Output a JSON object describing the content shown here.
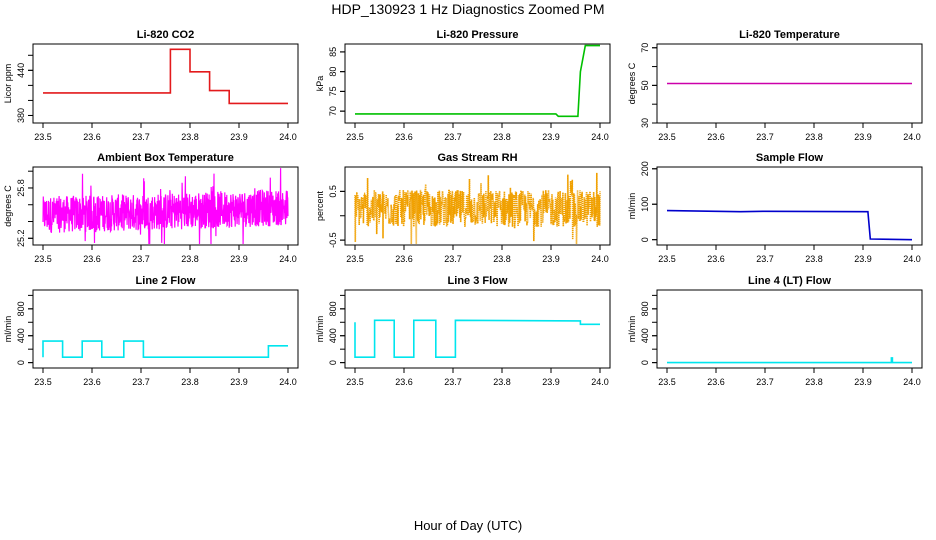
{
  "title": "HDP_130923  1 Hz Diagnostics Zoomed PM",
  "xlabel": "Hour of Day (UTC)",
  "chart_data": [
    {
      "type": "line",
      "title": "Li-820 CO2",
      "ylabel": "Licor ppm",
      "color": "#e31a1c",
      "ylim": [
        370,
        475
      ],
      "yticks": [
        380,
        440
      ],
      "yticks_minor": [
        380,
        400,
        420,
        440,
        460
      ],
      "xlim": [
        23.5,
        24.0
      ],
      "xticks": [
        "23.5",
        "23.6",
        "23.7",
        "23.8",
        "23.9",
        "24.0"
      ],
      "series": [
        {
          "x": [
            23.5,
            23.76,
            23.76,
            23.8,
            23.8,
            23.84,
            23.84,
            23.88,
            23.88,
            24.0
          ],
          "y": [
            410,
            410,
            468,
            468,
            438,
            438,
            413,
            413,
            396,
            396
          ]
        }
      ]
    },
    {
      "type": "line",
      "title": "Li-820 Pressure",
      "ylabel": "kPa",
      "color": "#00c000",
      "ylim": [
        67,
        87
      ],
      "yticks": [
        70,
        75,
        80,
        85
      ],
      "xlim": [
        23.5,
        24.0
      ],
      "xticks": [
        "23.5",
        "23.6",
        "23.7",
        "23.8",
        "23.9",
        "24.0"
      ],
      "series": [
        {
          "x": [
            23.5,
            23.91,
            23.915,
            23.955,
            23.96,
            23.97,
            24.0
          ],
          "y": [
            69.3,
            69.3,
            68.7,
            68.7,
            80,
            86.6,
            86.6
          ]
        }
      ]
    },
    {
      "type": "line",
      "title": "Li-820 Temperature",
      "ylabel": "degrees C",
      "color": "#cc00aa",
      "ylim": [
        30,
        72
      ],
      "yticks": [
        30,
        50,
        70
      ],
      "yticks_minor": [
        30,
        40,
        50,
        60,
        70
      ],
      "xlim": [
        23.5,
        24.0
      ],
      "xticks": [
        "23.5",
        "23.6",
        "23.7",
        "23.8",
        "23.9",
        "24.0"
      ],
      "series": [
        {
          "x": [
            23.5,
            24.0
          ],
          "y": [
            51,
            51
          ]
        }
      ]
    },
    {
      "type": "line",
      "title": "Ambient Box Temperature",
      "ylabel": "degrees C",
      "color": "#ff00ff",
      "ylim": [
        25.12,
        26.05
      ],
      "yticks": [
        25.2,
        25.8
      ],
      "yticks_minor": [
        25.2,
        25.4,
        25.6,
        25.8,
        26.0
      ],
      "xlim": [
        23.5,
        24.0
      ],
      "xticks": [
        "23.5",
        "23.6",
        "23.7",
        "23.8",
        "23.9",
        "24.0"
      ],
      "series": [
        {
          "x": [
            23.5,
            23.75,
            24.0
          ],
          "y": [
            25.48,
            25.52,
            25.57
          ],
          "noise": 0.22
        }
      ]
    },
    {
      "type": "scatter",
      "title": "Gas Stream RH",
      "ylabel": "percent",
      "color": "#f0a000",
      "ylim": [
        -0.6,
        1.0
      ],
      "yticks": [
        -0.5,
        0.5
      ],
      "yticks_minor": [
        -0.5,
        0.0,
        0.5
      ],
      "xlim": [
        23.5,
        24.0
      ],
      "xticks": [
        "23.5",
        "23.6",
        "23.7",
        "23.8",
        "23.9",
        "24.0"
      ],
      "series": [
        {
          "x": [
            23.5,
            24.0
          ],
          "y": [
            0.15,
            0.15
          ],
          "noise": 0.38
        }
      ]
    },
    {
      "type": "line",
      "title": "Sample Flow",
      "ylabel": "ml/min",
      "color": "#0000cc",
      "ylim": [
        -15,
        205
      ],
      "yticks": [
        0,
        100,
        200
      ],
      "xlim": [
        23.5,
        24.0
      ],
      "xticks": [
        "23.5",
        "23.6",
        "23.7",
        "23.8",
        "23.9",
        "24.0"
      ],
      "series": [
        {
          "x": [
            23.5,
            23.65,
            23.7,
            23.91,
            23.915,
            24.0
          ],
          "y": [
            82,
            79,
            80,
            79,
            2,
            0
          ]
        }
      ]
    },
    {
      "type": "line",
      "title": "Line 2 Flow",
      "ylabel": "ml/min",
      "color": "#00e5ee",
      "ylim": [
        -80,
        1080
      ],
      "yticks": [
        0,
        400,
        800
      ],
      "yticks_minor": [
        0,
        200,
        400,
        600,
        800,
        1000
      ],
      "xlim": [
        23.5,
        24.0
      ],
      "xticks": [
        "23.5",
        "23.6",
        "23.7",
        "23.8",
        "23.9",
        "24.0"
      ],
      "series": [
        {
          "x": [
            23.5,
            23.5,
            23.54,
            23.54,
            23.58,
            23.58,
            23.62,
            23.62,
            23.665,
            23.665,
            23.705,
            23.705,
            23.96,
            23.96,
            24.0
          ],
          "y": [
            80,
            320,
            320,
            80,
            80,
            320,
            320,
            80,
            80,
            320,
            320,
            80,
            80,
            250,
            250
          ]
        }
      ]
    },
    {
      "type": "line",
      "title": "Line 3 Flow",
      "ylabel": "ml/min",
      "color": "#00e5ee",
      "ylim": [
        -80,
        1080
      ],
      "yticks": [
        0,
        400,
        800
      ],
      "yticks_minor": [
        0,
        200,
        400,
        600,
        800,
        1000
      ],
      "xlim": [
        23.5,
        24.0
      ],
      "xticks": [
        "23.5",
        "23.6",
        "23.7",
        "23.8",
        "23.9",
        "24.0"
      ],
      "series": [
        {
          "x": [
            23.5,
            23.5,
            23.5,
            23.54,
            23.54,
            23.58,
            23.58,
            23.62,
            23.62,
            23.665,
            23.665,
            23.705,
            23.705,
            23.96,
            23.96,
            24.0
          ],
          "y": [
            600,
            600,
            80,
            80,
            630,
            630,
            80,
            80,
            630,
            630,
            80,
            80,
            630,
            620,
            570,
            570
          ]
        }
      ]
    },
    {
      "type": "line",
      "title": "Line 4 (LT) Flow",
      "ylabel": "ml/min",
      "color": "#00e5ee",
      "ylim": [
        -80,
        1080
      ],
      "yticks": [
        0,
        400,
        800
      ],
      "yticks_minor": [
        0,
        200,
        400,
        600,
        800,
        1000
      ],
      "xlim": [
        23.5,
        24.0
      ],
      "xticks": [
        "23.5",
        "23.6",
        "23.7",
        "23.8",
        "23.9",
        "24.0"
      ],
      "series": [
        {
          "x": [
            23.5,
            23.958,
            23.958,
            23.96,
            23.96,
            24.0
          ],
          "y": [
            0,
            0,
            70,
            70,
            0,
            0
          ]
        }
      ]
    }
  ]
}
